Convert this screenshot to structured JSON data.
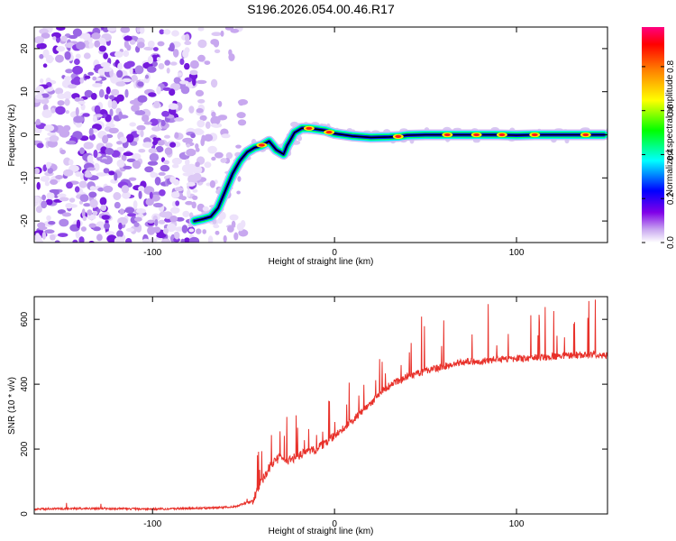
{
  "title": "S196.2026.054.00.46.R17",
  "chart_data": [
    {
      "type": "heatmap",
      "xlabel": "Height of straight line (km)",
      "ylabel": "Frequency (Hz)",
      "xlim": [
        -165,
        150
      ],
      "ylim": [
        -25,
        25
      ],
      "xticks": [
        -100,
        0,
        100
      ],
      "yticks": [
        -20,
        -10,
        0,
        10,
        20
      ],
      "ridge_x": [
        -77,
        -72,
        -68,
        -64,
        -60,
        -56,
        -52,
        -48,
        -44,
        -40,
        -36,
        -32,
        -28,
        -26,
        -24,
        -22,
        -20,
        -18,
        -16,
        -14,
        -10,
        -5,
        0,
        10,
        20,
        30,
        35,
        40,
        50,
        60,
        70,
        80,
        90,
        100,
        110,
        120,
        130,
        140,
        148
      ],
      "ridge_y": [
        -20,
        -19.5,
        -19,
        -17,
        -13,
        -9,
        -6,
        -4,
        -3,
        -2.5,
        -1.5,
        -3.5,
        -4.5,
        -2.5,
        -1,
        0.5,
        1,
        1.5,
        1.5,
        1.5,
        1.3,
        1,
        0.3,
        -0.3,
        -0.6,
        -0.5,
        -0.4,
        -0.1,
        0,
        0,
        0,
        0,
        0,
        -0.1,
        0,
        0,
        0,
        0,
        0
      ],
      "noise_region_x": [
        -165,
        -55
      ],
      "colorbar": {
        "label": "Normalized spectral amplitude",
        "ticks": [
          0.0,
          0.2,
          0.4,
          0.6,
          0.8
        ],
        "tick_labels": [
          "0.0",
          "0.2",
          "0.4",
          "0.6",
          "0.8"
        ],
        "colors": [
          "#ffffff",
          "#c9a8f0",
          "#8000e8",
          "#0000ff",
          "#00ffff",
          "#00ff00",
          "#ffff00",
          "#ff8000",
          "#ff0000",
          "#ff0080"
        ]
      }
    },
    {
      "type": "line",
      "xlabel": "Height of straight line (km)",
      "ylabel": "SNR (10 * v/v)",
      "xlim": [
        -165,
        150
      ],
      "ylim": [
        0,
        670
      ],
      "xticks": [
        -100,
        0,
        100
      ],
      "yticks": [
        0,
        200,
        400,
        600
      ],
      "series": [
        {
          "name": "SNR",
          "color": "#e8312a",
          "x": [
            -165,
            -140,
            -100,
            -70,
            -55,
            -45,
            -40,
            -35,
            -30,
            -25,
            -20,
            -15,
            -10,
            -5,
            0,
            5,
            10,
            15,
            20,
            25,
            30,
            40,
            50,
            60,
            70,
            80,
            90,
            100,
            110,
            120,
            130,
            140,
            150
          ],
          "values": [
            15,
            17,
            15,
            18,
            22,
            40,
            100,
            150,
            175,
            165,
            180,
            190,
            200,
            220,
            240,
            265,
            290,
            315,
            340,
            375,
            395,
            425,
            440,
            455,
            470,
            470,
            475,
            480,
            480,
            485,
            490,
            490,
            490
          ]
        }
      ]
    }
  ]
}
